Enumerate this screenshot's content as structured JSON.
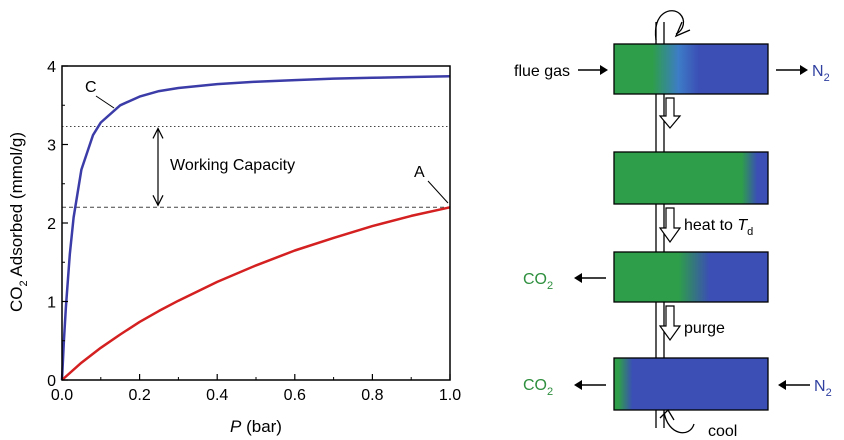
{
  "chart_data": {
    "type": "line",
    "xlabel_var": "P",
    "xlabel_unit": "(bar)",
    "ylabel": "CO2 Adsorbed (mmol/g)",
    "ylabel_parts": {
      "pre": "CO",
      "sub": "2",
      "post": " Adsorbed (mmol/g)"
    },
    "xlim": [
      0,
      1.0
    ],
    "ylim": [
      0,
      4
    ],
    "x_ticks": [
      "0.0",
      "0.2",
      "0.4",
      "0.6",
      "0.8",
      "1.0"
    ],
    "y_ticks": [
      "0",
      "1",
      "2",
      "3",
      "4"
    ],
    "grid": false,
    "series": [
      {
        "name": "C",
        "color": "#3c3ca8",
        "x": [
          0,
          0.005,
          0.01,
          0.02,
          0.03,
          0.05,
          0.08,
          0.1,
          0.15,
          0.2,
          0.25,
          0.3,
          0.4,
          0.5,
          0.6,
          0.7,
          0.8,
          0.9,
          1.0
        ],
        "y": [
          0,
          0.5,
          0.93,
          1.6,
          2.07,
          2.68,
          3.12,
          3.28,
          3.5,
          3.61,
          3.68,
          3.72,
          3.77,
          3.8,
          3.82,
          3.84,
          3.85,
          3.86,
          3.87
        ]
      },
      {
        "name": "A",
        "color": "#d42020",
        "x": [
          0,
          0.05,
          0.1,
          0.15,
          0.2,
          0.25,
          0.3,
          0.4,
          0.5,
          0.6,
          0.7,
          0.8,
          0.9,
          1.0
        ],
        "y": [
          0,
          0.22,
          0.41,
          0.58,
          0.74,
          0.88,
          1.01,
          1.25,
          1.46,
          1.65,
          1.81,
          1.96,
          2.09,
          2.2
        ]
      }
    ],
    "reference_lines": [
      {
        "y": 3.23,
        "style": "dotted"
      },
      {
        "y": 2.2,
        "style": "dashed"
      }
    ],
    "annotations": {
      "label_c": "C",
      "label_a": "A",
      "working_capacity": "Working Capacity",
      "working_capacity_range": [
        2.2,
        3.23
      ]
    }
  },
  "diagram": {
    "flue_gas_label": "flue gas",
    "n2_label": "N",
    "n2_sub": "2",
    "co2_label": "CO",
    "co2_sub": "2",
    "heat_label": "heat to ",
    "heat_var": "T",
    "heat_sub": "d",
    "purge_label": "purge",
    "cool_label": "cool",
    "colors": {
      "green": "#2e9e4a",
      "blue": "#3b4fb5",
      "co2_text": "#2e8f3e",
      "n2_text": "#3040a0"
    }
  }
}
